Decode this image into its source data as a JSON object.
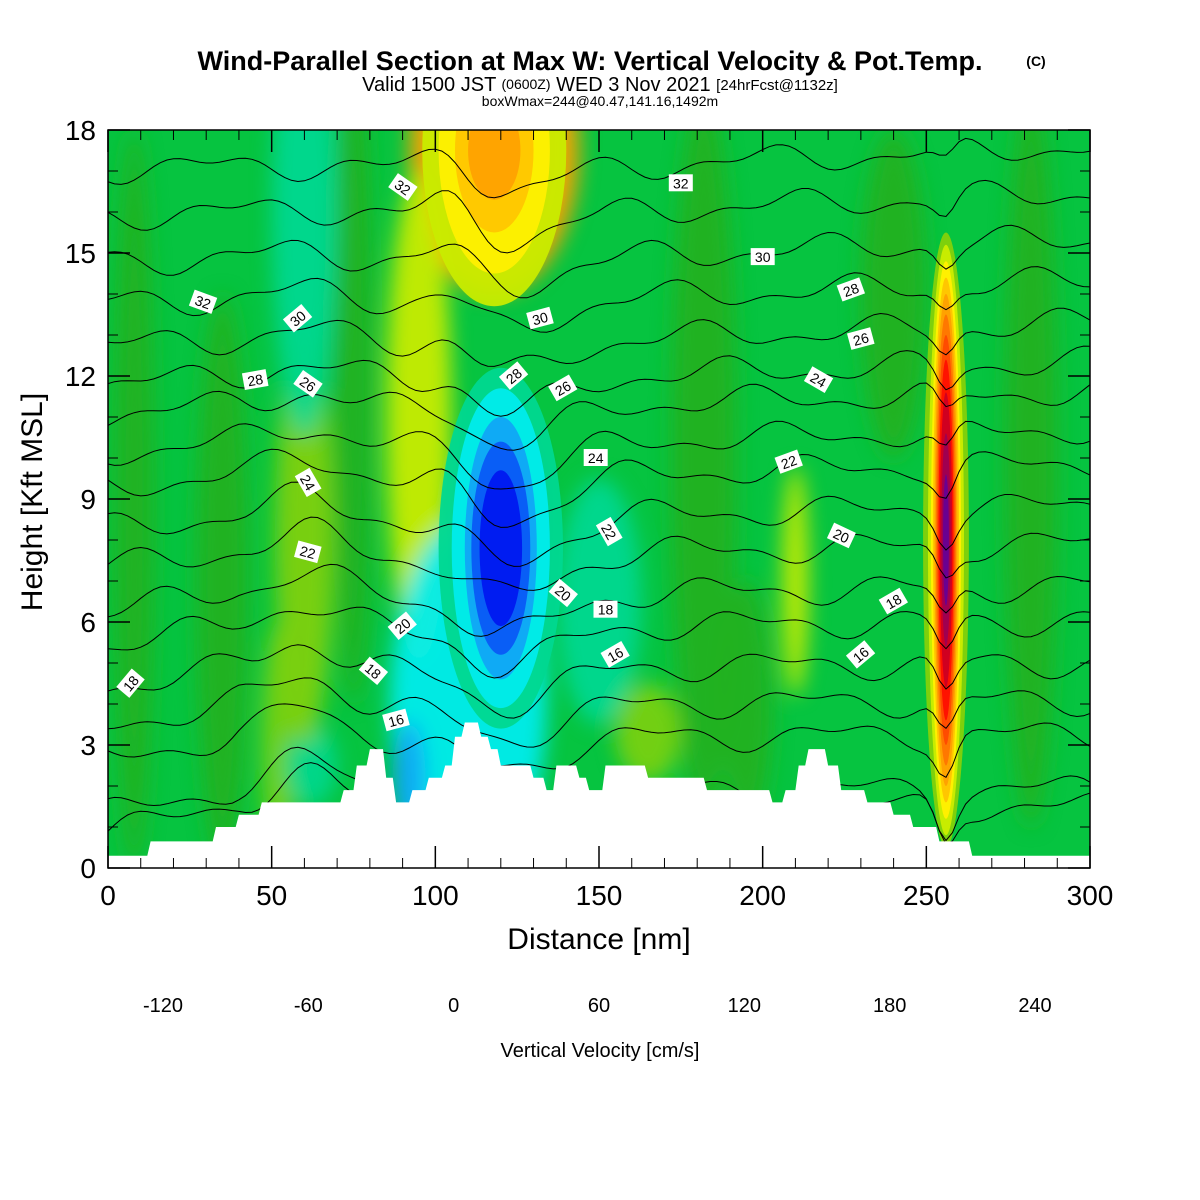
{
  "chart_data": {
    "type": "heatmap",
    "title": "Wind-Parallel Section at Max W: Vertical Velocity & Pot.Temp.",
    "title_mark": "(C)",
    "subtitle_main": "Valid 1500 JST",
    "subtitle_utc": "(0600Z)",
    "subtitle_date": "WED 3 Nov 2021",
    "subtitle_fcst": "[24hrFcst@1132z]",
    "subtitle2": "boxWmax=244@40.47,141.16,1492m",
    "xlabel": "Distance [nm]",
    "ylabel": "Height [Kft MSL]",
    "xlim": [
      0,
      300
    ],
    "ylim": [
      0,
      18
    ],
    "xticks": [
      0,
      50,
      100,
      150,
      200,
      250,
      300
    ],
    "yticks": [
      0,
      3,
      6,
      9,
      12,
      15,
      18
    ],
    "colorbar": {
      "label": "Vertical Velocity [cm/s]",
      "tick_labels": [
        "-120",
        "-60",
        "0",
        "60",
        "120",
        "180",
        "240"
      ],
      "tick_values": [
        -120,
        -60,
        0,
        60,
        120,
        180,
        240
      ],
      "levels": [
        -120,
        -100,
        -80,
        -60,
        -40,
        -20,
        0,
        20,
        40,
        60,
        80,
        100,
        120,
        140,
        160,
        180,
        200,
        220,
        240
      ],
      "colors": [
        "#0018f0",
        "#0a5af5",
        "#10a6f6",
        "#00ecec",
        "#00d890",
        "#06c440",
        "#22b01e",
        "#7ed00c",
        "#c8ec00",
        "#fff000",
        "#ffc600",
        "#ffa200",
        "#ff7800",
        "#ff4c00",
        "#ff1200",
        "#d00020",
        "#a00050",
        "#6a0090"
      ]
    },
    "velocity_features": [
      {
        "x": 120,
        "z": 7.8,
        "w": -110
      },
      {
        "x": 110,
        "z": 4.0,
        "w": -50
      },
      {
        "x": 92,
        "z": 2.2,
        "w": -80
      },
      {
        "x": 118,
        "z": 17.5,
        "w": 110
      },
      {
        "x": 95,
        "z": 11.0,
        "w": 50
      },
      {
        "x": 60,
        "z": 8.0,
        "w": 30
      },
      {
        "x": 210,
        "z": 7.0,
        "w": 50
      },
      {
        "x": 256,
        "z": 8.0,
        "w": 240
      },
      {
        "x": 60,
        "z": 16.0,
        "w": -30
      },
      {
        "x": 150,
        "z": 6.5,
        "w": -30
      }
    ],
    "terrain": [
      {
        "x": 0,
        "z": 0.3
      },
      {
        "x": 12,
        "z": 0.3
      },
      {
        "x": 13,
        "z": 0.65
      },
      {
        "x": 32,
        "z": 0.65
      },
      {
        "x": 33,
        "z": 1.0
      },
      {
        "x": 39,
        "z": 1.0
      },
      {
        "x": 40,
        "z": 1.3
      },
      {
        "x": 46,
        "z": 1.3
      },
      {
        "x": 47,
        "z": 1.6
      },
      {
        "x": 71,
        "z": 1.6
      },
      {
        "x": 72,
        "z": 1.9
      },
      {
        "x": 75,
        "z": 1.9
      },
      {
        "x": 76,
        "z": 2.5
      },
      {
        "x": 79,
        "z": 2.5
      },
      {
        "x": 80,
        "z": 2.9
      },
      {
        "x": 84,
        "z": 2.9
      },
      {
        "x": 85,
        "z": 2.2
      },
      {
        "x": 87,
        "z": 2.2
      },
      {
        "x": 88,
        "z": 1.6
      },
      {
        "x": 92,
        "z": 1.6
      },
      {
        "x": 93,
        "z": 1.9
      },
      {
        "x": 97,
        "z": 1.9
      },
      {
        "x": 98,
        "z": 2.2
      },
      {
        "x": 102,
        "z": 2.2
      },
      {
        "x": 103,
        "z": 2.5
      },
      {
        "x": 105,
        "z": 2.5
      },
      {
        "x": 106,
        "z": 3.2
      },
      {
        "x": 108,
        "z": 3.2
      },
      {
        "x": 109,
        "z": 3.55
      },
      {
        "x": 113,
        "z": 3.55
      },
      {
        "x": 114,
        "z": 3.2
      },
      {
        "x": 116,
        "z": 3.2
      },
      {
        "x": 117,
        "z": 2.9
      },
      {
        "x": 119,
        "z": 2.9
      },
      {
        "x": 120,
        "z": 2.5
      },
      {
        "x": 129,
        "z": 2.5
      },
      {
        "x": 130,
        "z": 2.2
      },
      {
        "x": 133,
        "z": 2.2
      },
      {
        "x": 134,
        "z": 1.9
      },
      {
        "x": 136,
        "z": 1.9
      },
      {
        "x": 137,
        "z": 2.5
      },
      {
        "x": 143,
        "z": 2.5
      },
      {
        "x": 144,
        "z": 2.2
      },
      {
        "x": 146,
        "z": 2.2
      },
      {
        "x": 147,
        "z": 1.9
      },
      {
        "x": 151,
        "z": 1.9
      },
      {
        "x": 152,
        "z": 2.5
      },
      {
        "x": 164,
        "z": 2.5
      },
      {
        "x": 165,
        "z": 2.2
      },
      {
        "x": 182,
        "z": 2.2
      },
      {
        "x": 183,
        "z": 1.9
      },
      {
        "x": 202,
        "z": 1.9
      },
      {
        "x": 203,
        "z": 1.6
      },
      {
        "x": 206,
        "z": 1.6
      },
      {
        "x": 207,
        "z": 1.9
      },
      {
        "x": 210,
        "z": 1.9
      },
      {
        "x": 211,
        "z": 2.5
      },
      {
        "x": 213,
        "z": 2.5
      },
      {
        "x": 214,
        "z": 2.9
      },
      {
        "x": 219,
        "z": 2.9
      },
      {
        "x": 220,
        "z": 2.5
      },
      {
        "x": 223,
        "z": 2.5
      },
      {
        "x": 224,
        "z": 1.9
      },
      {
        "x": 231,
        "z": 1.9
      },
      {
        "x": 232,
        "z": 1.6
      },
      {
        "x": 239,
        "z": 1.6
      },
      {
        "x": 240,
        "z": 1.3
      },
      {
        "x": 245,
        "z": 1.3
      },
      {
        "x": 246,
        "z": 1.0
      },
      {
        "x": 253,
        "z": 1.0
      },
      {
        "x": 254,
        "z": 0.65
      },
      {
        "x": 263,
        "z": 0.65
      },
      {
        "x": 264,
        "z": 0.3
      },
      {
        "x": 300,
        "z": 0.3
      }
    ],
    "theta_base": [
      1.5,
      1.9,
      3.2,
      4.0,
      4.9,
      5.9,
      6.7,
      7.7,
      8.6,
      9.6,
      10.4,
      11.3,
      12.0,
      12.9,
      13.9,
      14.9,
      16.0,
      17.1
    ],
    "contour_labels": [
      {
        "text": "32",
        "x": 90,
        "z": 16.6,
        "rot": 35
      },
      {
        "text": "32",
        "x": 175,
        "z": 16.7,
        "rot": 0
      },
      {
        "text": "30",
        "x": 200,
        "z": 14.9,
        "rot": 0
      },
      {
        "text": "28",
        "x": 227,
        "z": 14.1,
        "rot": -20
      },
      {
        "text": "26",
        "x": 230,
        "z": 12.9,
        "rot": -15
      },
      {
        "text": "24",
        "x": 217,
        "z": 11.9,
        "rot": 30
      },
      {
        "text": "22",
        "x": 208,
        "z": 9.9,
        "rot": -20
      },
      {
        "text": "20",
        "x": 224,
        "z": 8.1,
        "rot": 25
      },
      {
        "text": "18",
        "x": 240,
        "z": 6.5,
        "rot": -30
      },
      {
        "text": "16",
        "x": 230,
        "z": 5.2,
        "rot": -40
      },
      {
        "text": "32",
        "x": 29,
        "z": 13.8,
        "rot": 20
      },
      {
        "text": "30",
        "x": 58,
        "z": 13.4,
        "rot": -40
      },
      {
        "text": "28",
        "x": 45,
        "z": 11.9,
        "rot": -10
      },
      {
        "text": "26",
        "x": 61,
        "z": 11.8,
        "rot": 35
      },
      {
        "text": "24",
        "x": 61,
        "z": 9.4,
        "rot": 60
      },
      {
        "text": "22",
        "x": 61,
        "z": 7.7,
        "rot": 15
      },
      {
        "text": "20",
        "x": 90,
        "z": 5.9,
        "rot": -40
      },
      {
        "text": "18",
        "x": 81,
        "z": 4.8,
        "rot": 40
      },
      {
        "text": "16",
        "x": 88,
        "z": 3.6,
        "rot": -15
      },
      {
        "text": "18",
        "x": 7,
        "z": 4.5,
        "rot": -50
      },
      {
        "text": "30",
        "x": 132,
        "z": 13.4,
        "rot": -15
      },
      {
        "text": "28",
        "x": 124,
        "z": 12.0,
        "rot": -40
      },
      {
        "text": "26",
        "x": 139,
        "z": 11.7,
        "rot": -30
      },
      {
        "text": "24",
        "x": 149,
        "z": 10.0,
        "rot": 0
      },
      {
        "text": "22",
        "x": 153,
        "z": 8.2,
        "rot": 60
      },
      {
        "text": "20",
        "x": 139,
        "z": 6.7,
        "rot": 40
      },
      {
        "text": "18",
        "x": 152,
        "z": 6.3,
        "rot": 0
      },
      {
        "text": "16",
        "x": 155,
        "z": 5.2,
        "rot": -30
      }
    ]
  }
}
